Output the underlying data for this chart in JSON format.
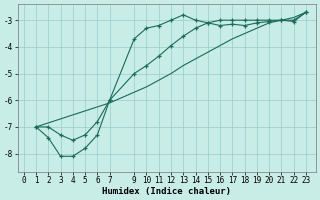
{
  "xlabel": "Humidex (Indice chaleur)",
  "bg_color": "#c8ece6",
  "grid_color": "#99cccc",
  "line_color": "#1a6b5a",
  "xlim": [
    -0.5,
    23.8
  ],
  "ylim": [
    -8.7,
    -2.4
  ],
  "xticks": [
    0,
    1,
    2,
    3,
    4,
    5,
    6,
    7,
    9,
    10,
    11,
    12,
    13,
    14,
    15,
    16,
    17,
    18,
    19,
    20,
    21,
    22,
    23
  ],
  "yticks": [
    -8,
    -7,
    -6,
    -5,
    -4,
    -3
  ],
  "line1_x": [
    1,
    2,
    3,
    4,
    5,
    6,
    7,
    9,
    10,
    11,
    12,
    13,
    14,
    15,
    16,
    17,
    18,
    19,
    20,
    21,
    22,
    23
  ],
  "line1_y": [
    -7.0,
    -7.0,
    -7.3,
    -7.5,
    -7.3,
    -6.8,
    -6.0,
    -3.7,
    -3.3,
    -3.2,
    -3.0,
    -2.8,
    -3.0,
    -3.1,
    -3.2,
    -3.15,
    -3.2,
    -3.1,
    -3.05,
    -3.0,
    -3.05,
    -2.7
  ],
  "line2_x": [
    1,
    2,
    3,
    4,
    5,
    6,
    7,
    9,
    10,
    11,
    12,
    13,
    14,
    15,
    16,
    17,
    18,
    19,
    20,
    21,
    22,
    23
  ],
  "line2_y": [
    -7.0,
    -7.4,
    -8.1,
    -8.1,
    -7.8,
    -7.3,
    -6.0,
    -5.0,
    -4.7,
    -4.35,
    -3.95,
    -3.6,
    -3.3,
    -3.1,
    -3.0,
    -3.0,
    -3.0,
    -3.0,
    -3.0,
    -3.0,
    -3.0,
    -2.7
  ],
  "line3_x": [
    1,
    2,
    3,
    4,
    5,
    6,
    7,
    9,
    10,
    11,
    12,
    13,
    14,
    15,
    16,
    17,
    18,
    19,
    20,
    21,
    22,
    23
  ],
  "line3_y": [
    -7.0,
    -6.85,
    -6.7,
    -6.55,
    -6.4,
    -6.25,
    -6.1,
    -5.7,
    -5.5,
    -5.25,
    -5.0,
    -4.7,
    -4.45,
    -4.2,
    -3.95,
    -3.7,
    -3.5,
    -3.3,
    -3.1,
    -3.0,
    -2.9,
    -2.7
  ]
}
